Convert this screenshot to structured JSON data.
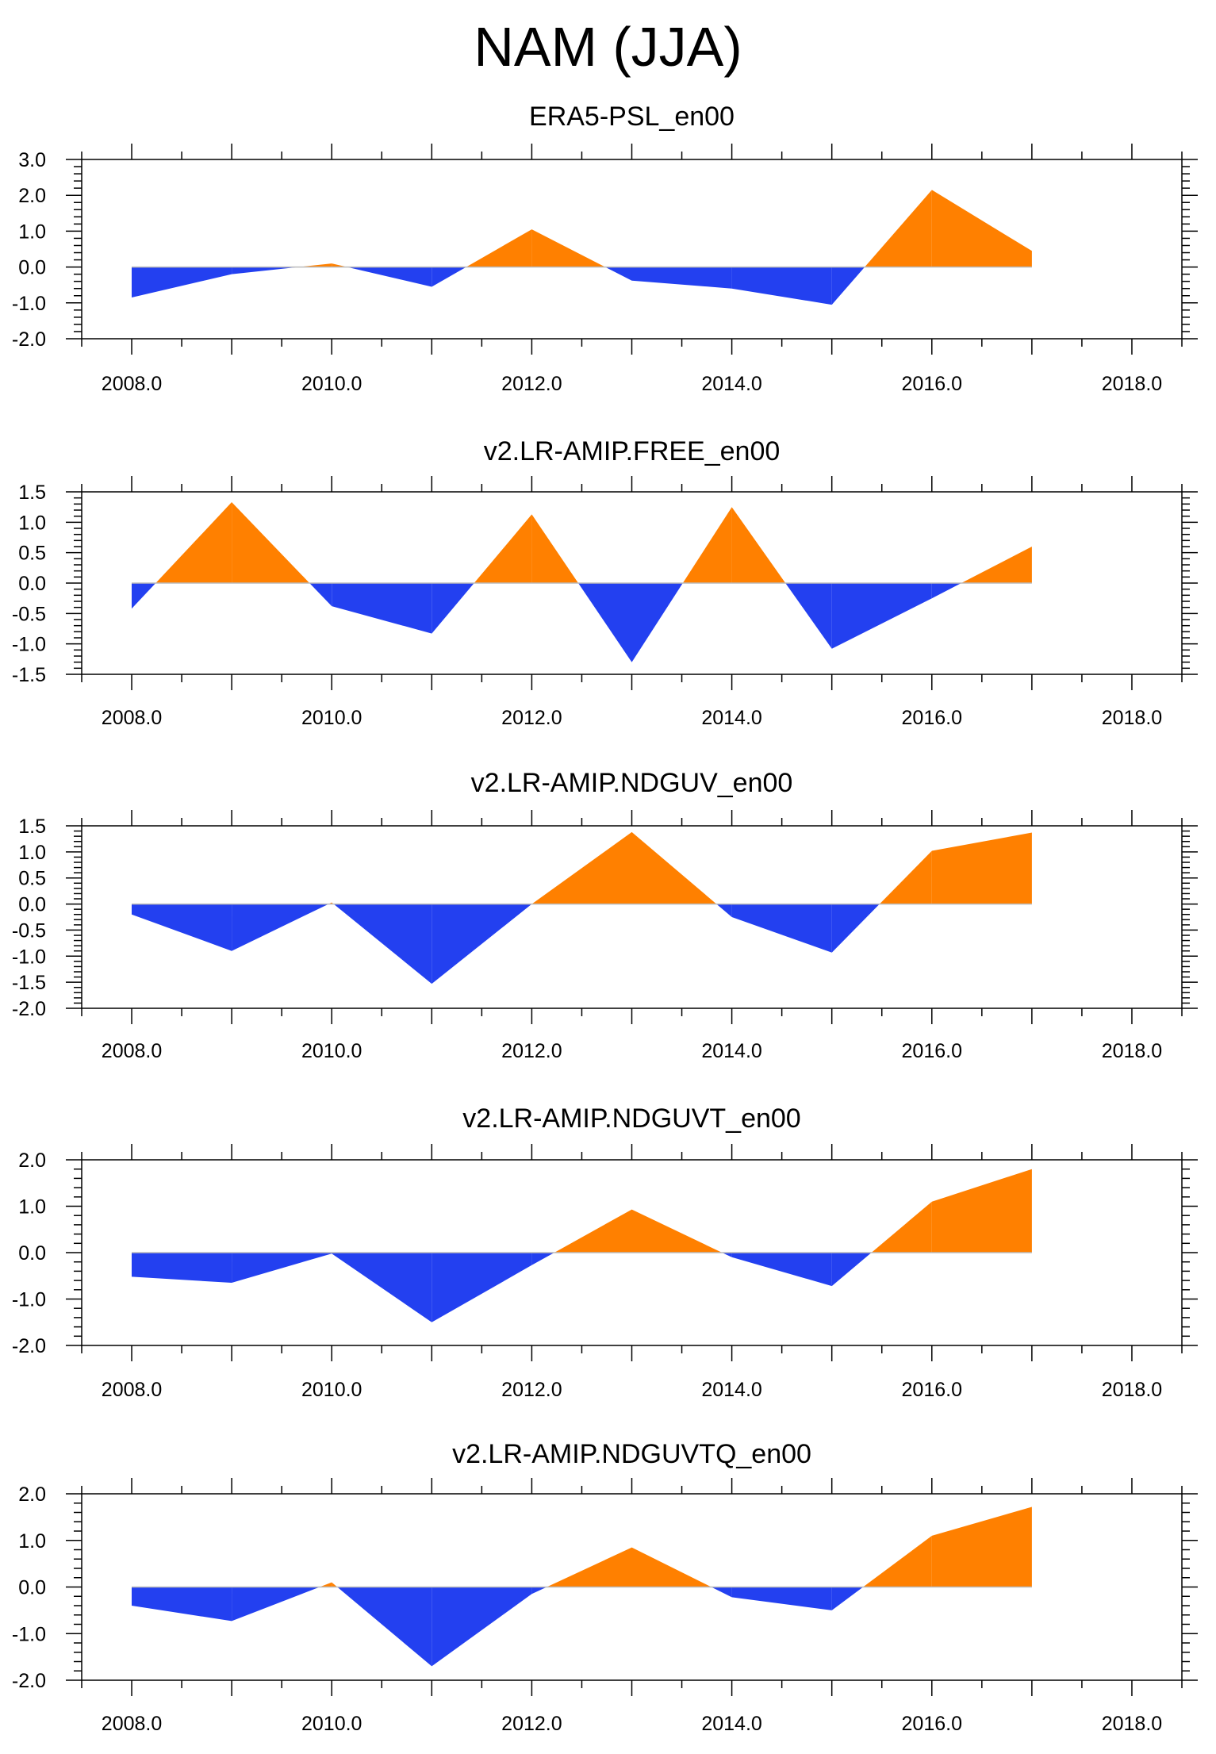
{
  "title": "NAM (JJA)",
  "colors": {
    "positive": "#FF8000",
    "negative": "#2340F0",
    "frame": "#000000",
    "zero_line": "#BBBBBB"
  },
  "chart_data": [
    {
      "type": "area",
      "title": "ERA5-PSL_en00",
      "x": [
        2008,
        2009,
        2010,
        2011,
        2012,
        2013,
        2014,
        2015,
        2016,
        2017
      ],
      "y": [
        -0.85,
        -0.2,
        0.1,
        -0.55,
        1.05,
        -0.38,
        -0.6,
        -1.05,
        2.15,
        0.45
      ],
      "xlim": [
        2007.5,
        2018.5
      ],
      "ylim": [
        -2.0,
        3.0
      ],
      "xticks": [
        2008,
        2010,
        2012,
        2014,
        2016,
        2018
      ],
      "xtick_labels": [
        "2008.0",
        "2010.0",
        "2012.0",
        "2014.0",
        "2016.0",
        "2018.0"
      ],
      "yticks": [
        -2.0,
        -1.0,
        0.0,
        1.0,
        2.0,
        3.0
      ],
      "ytick_labels": [
        "-2.0",
        "-1.0",
        "0.0",
        "1.0",
        "2.0",
        "3.0"
      ],
      "yminor_step": 0.2
    },
    {
      "type": "area",
      "title": "v2.LR-AMIP.FREE_en00",
      "x": [
        2008,
        2009,
        2010,
        2011,
        2012,
        2013,
        2014,
        2015,
        2016,
        2017
      ],
      "y": [
        -0.42,
        1.33,
        -0.38,
        -0.83,
        1.13,
        -1.3,
        1.25,
        -1.08,
        -0.25,
        0.6
      ],
      "xlim": [
        2007.5,
        2018.5
      ],
      "ylim": [
        -1.5,
        1.5
      ],
      "xticks": [
        2008,
        2010,
        2012,
        2014,
        2016,
        2018
      ],
      "xtick_labels": [
        "2008.0",
        "2010.0",
        "2012.0",
        "2014.0",
        "2016.0",
        "2018.0"
      ],
      "yticks": [
        -1.5,
        -1.0,
        -0.5,
        0.0,
        0.5,
        1.0,
        1.5
      ],
      "ytick_labels": [
        "-1.5",
        "-1.0",
        "-0.5",
        "0.0",
        "0.5",
        "1.0",
        "1.5"
      ],
      "yminor_step": 0.1
    },
    {
      "type": "area",
      "title": "v2.LR-AMIP.NDGUV_en00",
      "x": [
        2008,
        2009,
        2010,
        2011,
        2012,
        2013,
        2014,
        2015,
        2016,
        2017
      ],
      "y": [
        -0.2,
        -0.9,
        0.03,
        -1.53,
        0.0,
        1.38,
        -0.25,
        -0.93,
        1.02,
        1.37
      ],
      "xlim": [
        2007.5,
        2018.5
      ],
      "ylim": [
        -2.0,
        1.5
      ],
      "xticks": [
        2008,
        2010,
        2012,
        2014,
        2016,
        2018
      ],
      "xtick_labels": [
        "2008.0",
        "2010.0",
        "2012.0",
        "2014.0",
        "2016.0",
        "2018.0"
      ],
      "yticks": [
        -2.0,
        -1.5,
        -1.0,
        -0.5,
        0.0,
        0.5,
        1.0,
        1.5
      ],
      "ytick_labels": [
        "-2.0",
        "-1.5",
        "-1.0",
        "-0.5",
        "0.0",
        "0.5",
        "1.0",
        "1.5"
      ],
      "yminor_step": 0.1
    },
    {
      "type": "area",
      "title": "v2.LR-AMIP.NDGUVT_en00",
      "x": [
        2008,
        2009,
        2010,
        2011,
        2012,
        2013,
        2014,
        2015,
        2016,
        2017
      ],
      "y": [
        -0.52,
        -0.65,
        -0.02,
        -1.5,
        -0.27,
        0.93,
        -0.1,
        -0.72,
        1.1,
        1.8
      ],
      "xlim": [
        2007.5,
        2018.5
      ],
      "ylim": [
        -2.0,
        2.0
      ],
      "xticks": [
        2008,
        2010,
        2012,
        2014,
        2016,
        2018
      ],
      "xtick_labels": [
        "2008.0",
        "2010.0",
        "2012.0",
        "2014.0",
        "2016.0",
        "2018.0"
      ],
      "yticks": [
        -2.0,
        -1.0,
        0.0,
        1.0,
        2.0
      ],
      "ytick_labels": [
        "-2.0",
        "-1.0",
        "0.0",
        "1.0",
        "2.0"
      ],
      "yminor_step": 0.2
    },
    {
      "type": "area",
      "title": "v2.LR-AMIP.NDGUVTQ_en00",
      "x": [
        2008,
        2009,
        2010,
        2011,
        2012,
        2013,
        2014,
        2015,
        2016,
        2017
      ],
      "y": [
        -0.4,
        -0.73,
        0.1,
        -1.7,
        -0.15,
        0.85,
        -0.22,
        -0.5,
        1.1,
        1.72
      ],
      "xlim": [
        2007.5,
        2018.5
      ],
      "ylim": [
        -2.0,
        2.0
      ],
      "xticks": [
        2008,
        2010,
        2012,
        2014,
        2016,
        2018
      ],
      "xtick_labels": [
        "2008.0",
        "2010.0",
        "2012.0",
        "2014.0",
        "2016.0",
        "2018.0"
      ],
      "yticks": [
        -2.0,
        -1.0,
        0.0,
        1.0,
        2.0
      ],
      "ytick_labels": [
        "-2.0",
        "-1.0",
        "0.0",
        "1.0",
        "2.0"
      ],
      "yminor_step": 0.2
    }
  ]
}
